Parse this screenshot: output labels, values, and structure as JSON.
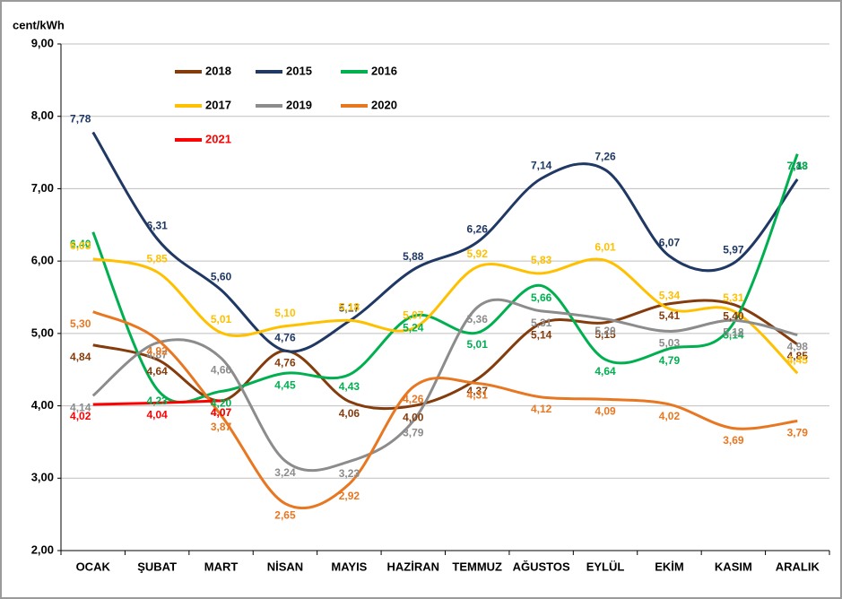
{
  "chart_data": {
    "type": "line",
    "ylabel": "cent/kWh",
    "categories": [
      "OCAK",
      "ŞUBAT",
      "MART",
      "NİSAN",
      "MAYIS",
      "HAZİRAN",
      "TEMMUZ",
      "AĞUSTOS",
      "EYLÜL",
      "EKİM",
      "KASIM",
      "ARALIK"
    ],
    "ylim": [
      2,
      9
    ],
    "yticks": [
      {
        "value": 2,
        "label": "2,00"
      },
      {
        "value": 3,
        "label": "3,00"
      },
      {
        "value": 4,
        "label": "4,00"
      },
      {
        "value": 5,
        "label": "5,00"
      },
      {
        "value": 6,
        "label": "6,00"
      },
      {
        "value": 7,
        "label": "7,00"
      },
      {
        "value": 8,
        "label": "8,00"
      },
      {
        "value": 9,
        "label": "9,00"
      }
    ],
    "grid": true,
    "series": [
      {
        "name": "2018",
        "color": "#843c0c",
        "values": [
          4.84,
          4.64,
          4.07,
          4.76,
          4.06,
          4.0,
          4.37,
          5.14,
          5.15,
          5.41,
          5.4,
          4.85
        ],
        "value_labels": [
          "4,84",
          "4,64",
          "4,07",
          "4,76",
          "4,06",
          "4,00",
          "4,37",
          "5,14",
          "5,15",
          "5,41",
          "5,40",
          "4,85"
        ]
      },
      {
        "name": "2015",
        "color": "#1f3864",
        "values": [
          7.78,
          6.31,
          5.6,
          4.76,
          5.17,
          5.88,
          6.26,
          7.14,
          7.26,
          6.07,
          5.97,
          7.13
        ],
        "value_labels": [
          "7,78",
          "6,31",
          "5,60",
          "4,76",
          "5,17",
          "5,88",
          "6,26",
          "7,14",
          "7,26",
          "6,07",
          "5,97",
          "7,13"
        ]
      },
      {
        "name": "2016",
        "color": "#00b050",
        "values": [
          6.4,
          4.23,
          4.2,
          4.45,
          4.43,
          5.24,
          5.01,
          5.66,
          4.64,
          4.79,
          5.14,
          7.48
        ],
        "value_labels": [
          "6,40",
          "4,23",
          "4,20",
          "4,45",
          "4,43",
          "5,24",
          "5,01",
          "5,66",
          "4,64",
          "4,79",
          "5,14",
          "7,48"
        ]
      },
      {
        "name": "2017",
        "color": "#ffc000",
        "values": [
          6.03,
          5.85,
          5.01,
          5.1,
          5.18,
          5.07,
          5.92,
          5.83,
          6.01,
          5.34,
          5.31,
          4.45
        ],
        "value_labels": [
          "6,03",
          "5,85",
          "5,01",
          "5,10",
          "5,18",
          "5,07",
          "5,92",
          "5,83",
          "6,01",
          "5,34",
          "5,31",
          "4,45"
        ]
      },
      {
        "name": "2019",
        "color": "#8c8c8c",
        "values": [
          4.14,
          4.87,
          4.66,
          3.24,
          3.23,
          3.79,
          5.36,
          5.31,
          5.2,
          5.03,
          5.18,
          4.98
        ],
        "value_labels": [
          "4,14",
          "4,87",
          "4,66",
          "3,24",
          "3,23",
          "3,79",
          "5,36",
          "5,31",
          "5,20",
          "5,03",
          "5,18",
          "4,98"
        ]
      },
      {
        "name": "2020",
        "color": "#e87722",
        "values": [
          5.3,
          4.92,
          3.87,
          2.65,
          2.92,
          4.26,
          4.31,
          4.12,
          4.09,
          4.02,
          3.69,
          3.79
        ],
        "value_labels": [
          "5,30",
          "4,92",
          "3,87",
          "2,65",
          "2,92",
          "4,26",
          "4,31",
          "4,12",
          "4,09",
          "4,02",
          "3,69",
          "3,79"
        ]
      },
      {
        "name": "2021",
        "color": "#ff0000",
        "values": [
          4.02,
          4.04,
          4.07,
          null,
          null,
          null,
          null,
          null,
          null,
          null,
          null,
          null
        ],
        "value_labels": [
          "4,02",
          "4,04",
          "4,07",
          null,
          null,
          null,
          null,
          null,
          null,
          null,
          null,
          null
        ]
      }
    ]
  }
}
